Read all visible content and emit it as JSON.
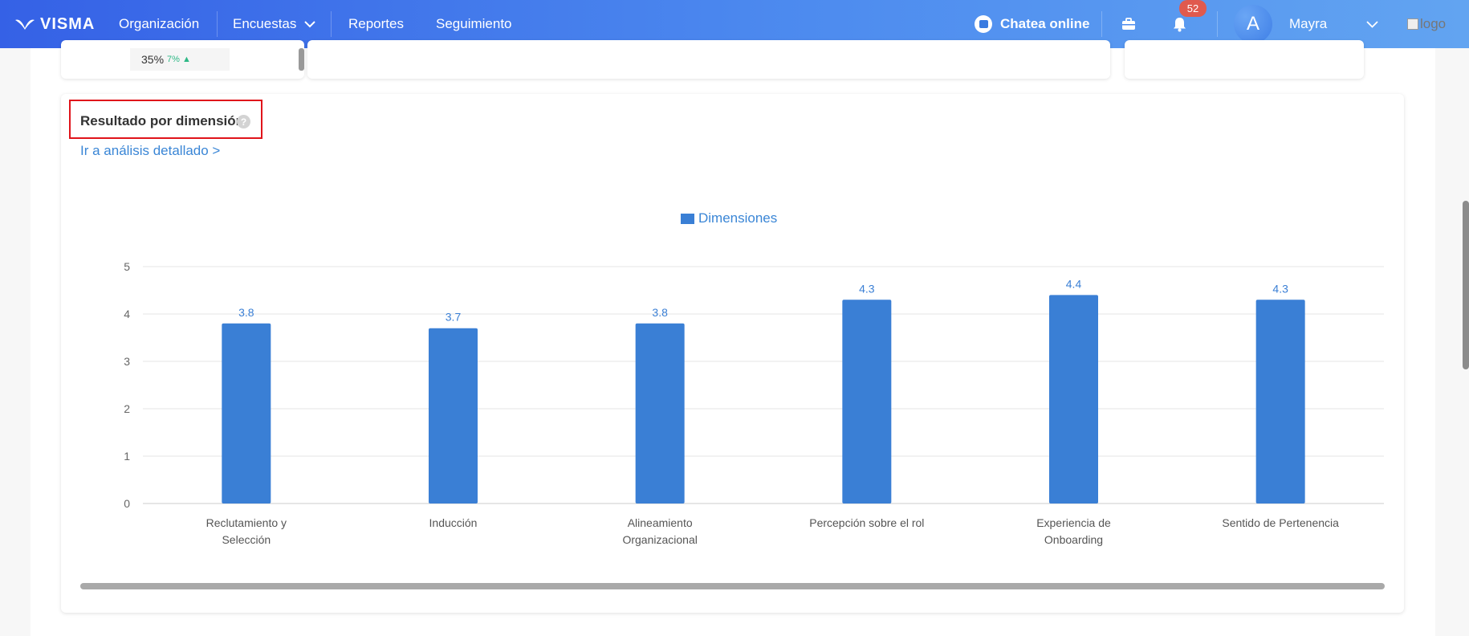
{
  "nav": {
    "brand": "VISMA",
    "items": [
      {
        "label": "Organización"
      },
      {
        "label": "Encuestas"
      },
      {
        "label": "Reportes"
      },
      {
        "label": "Seguimiento"
      }
    ],
    "chat_label": "Chatea online",
    "notification_count": "52",
    "avatar_letter": "A",
    "user_name": "Mayra",
    "logo_alt": "logo"
  },
  "summary": {
    "percent": "35%",
    "delta": "7%"
  },
  "section": {
    "title": "Resultado por dimensión",
    "link": "Ir a análisis detallado >"
  },
  "chart_data": {
    "type": "bar",
    "categories": [
      [
        "Reclutamiento y",
        "Selección"
      ],
      [
        "Inducción"
      ],
      [
        "Alineamiento",
        "Organizacional"
      ],
      [
        "Percepción sobre el rol"
      ],
      [
        "Experiencia de",
        "Onboarding"
      ],
      [
        "Sentido de Pertenencia"
      ]
    ],
    "series": [
      {
        "name": "Dimensiones",
        "values": [
          3.8,
          3.7,
          3.8,
          4.3,
          4.4,
          4.3
        ],
        "color": "#3a7fd5"
      }
    ],
    "value_labels": [
      "3.8",
      "3.7",
      "3.8",
      "4.3",
      "4.4",
      "4.3"
    ],
    "ylim": [
      0,
      5
    ],
    "yticks": [
      "0",
      "1",
      "2",
      "3",
      "4",
      "5"
    ],
    "grid": true,
    "legend_position": "top-center"
  }
}
